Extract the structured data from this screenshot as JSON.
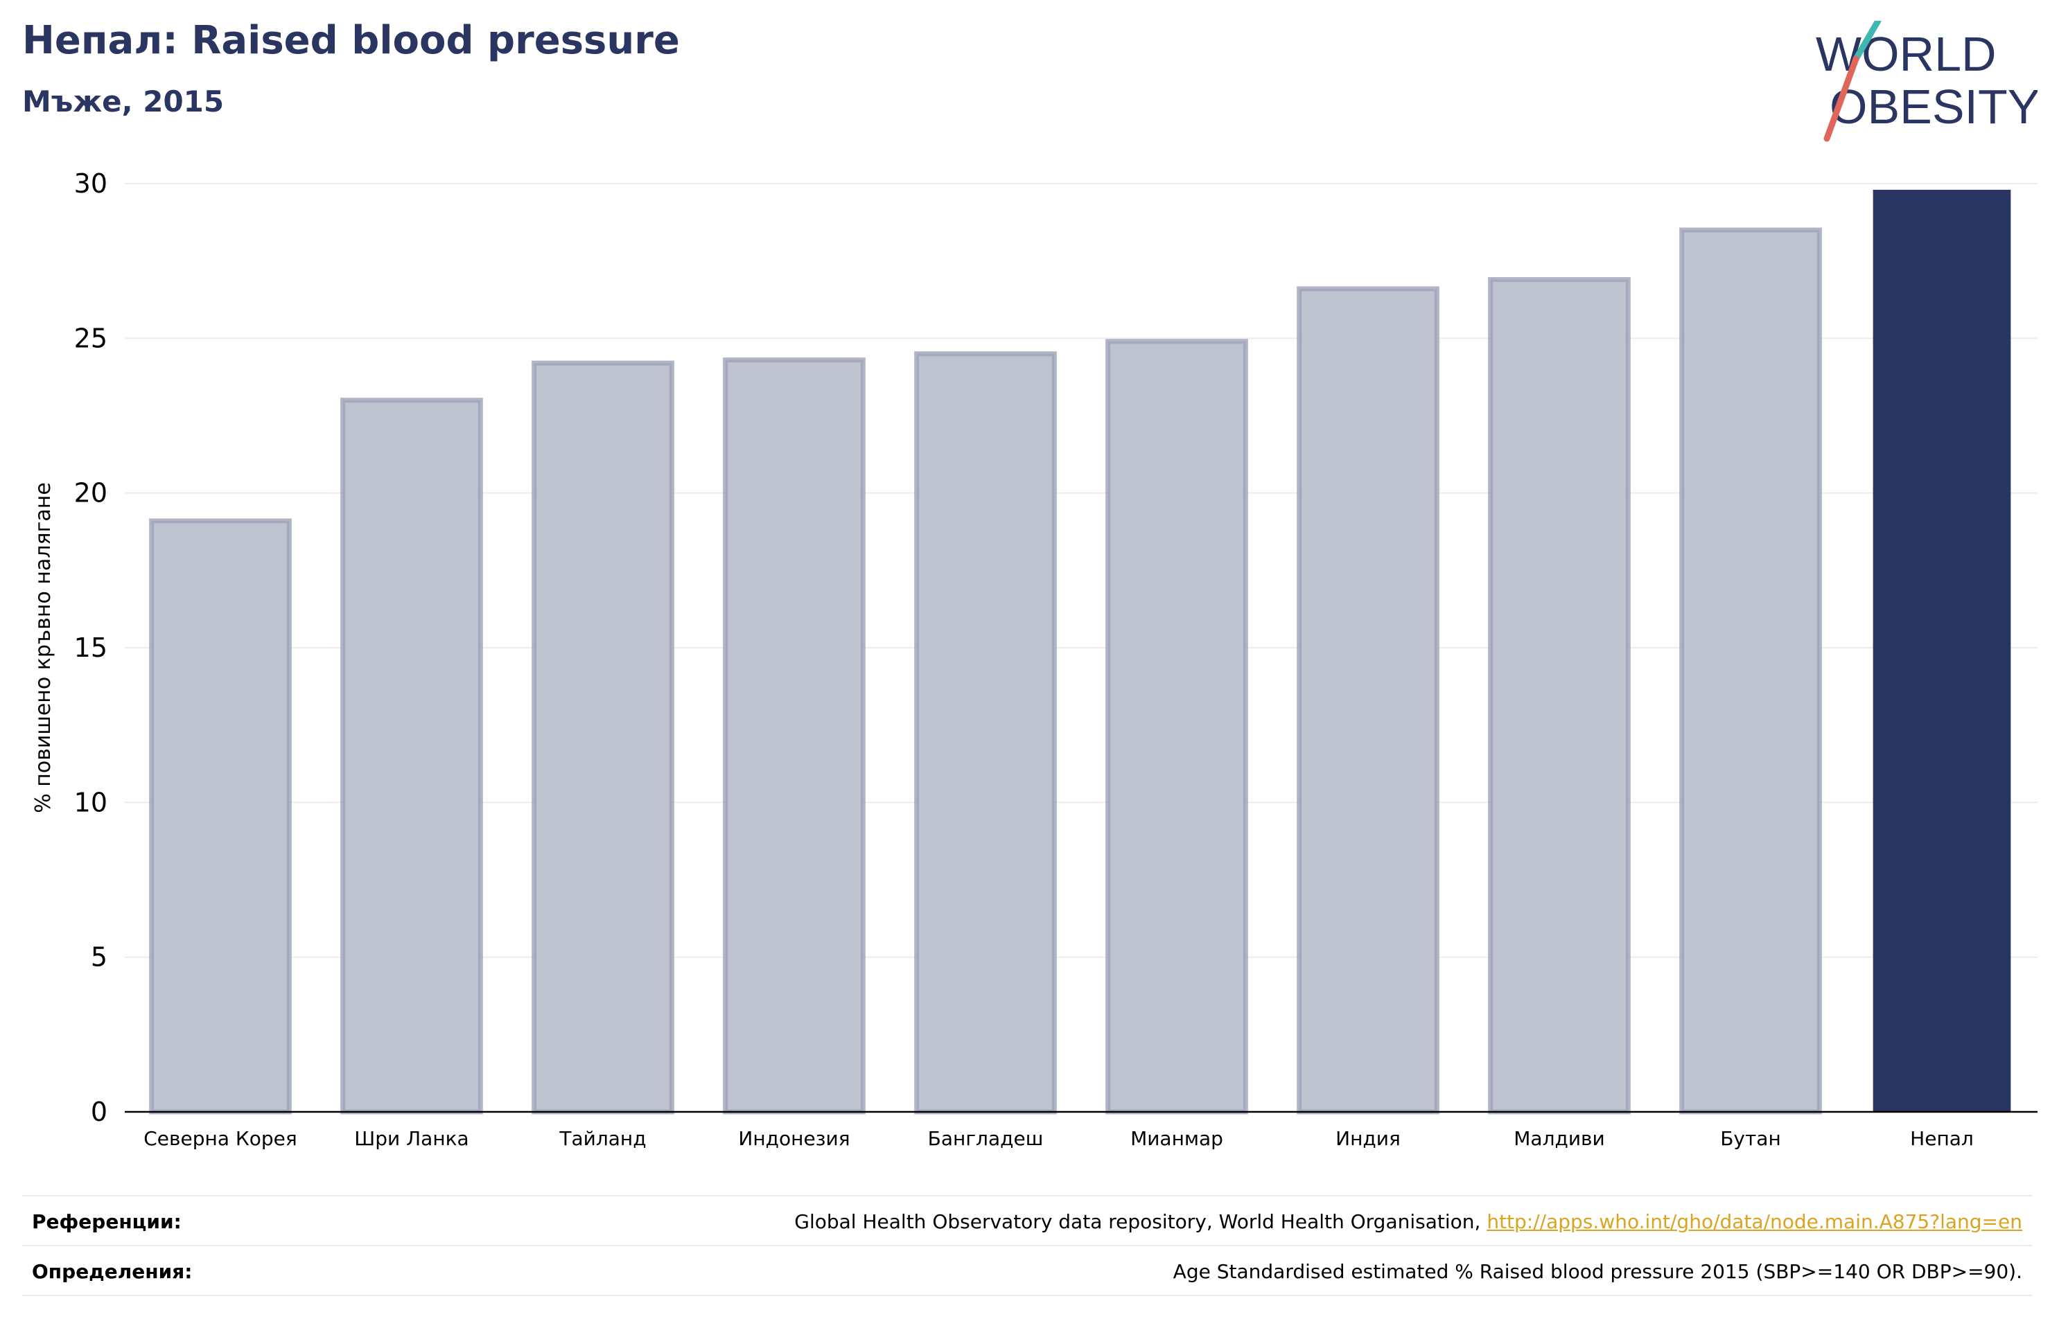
{
  "header": {
    "title": "Непал: Raised blood pressure",
    "subtitle": "Мъже, 2015"
  },
  "logo": {
    "line1": "WORLD",
    "line2": "OBESITY"
  },
  "colors": {
    "highlight": "#2a3561",
    "bar": "#bfc2cf",
    "bar_border": "#9ea3b8",
    "link": "#d9a41f"
  },
  "footer": {
    "references_label": "Референции:",
    "references_text": "Global Health Observatory data repository, World Health Organisation, ",
    "references_link": "http://apps.who.int/gho/data/node.main.A875?lang=en",
    "definitions_label": "Определения:",
    "definitions_text": "Age Standardised estimated % Raised blood pressure 2015 (SBP>=140 OR DBP>=90)."
  },
  "chart_data": {
    "type": "bar",
    "title": "Непал: Raised blood pressure",
    "subtitle": "Мъже, 2015",
    "xlabel": "",
    "ylabel": "% повишено кръвно налягане",
    "categories": [
      "Северна Корея",
      "Шри Ланка",
      "Тайланд",
      "Индонезия",
      "Бангладеш",
      "Мианмар",
      "Индия",
      "Малдиви",
      "Бутан",
      "Непал"
    ],
    "values": [
      19.1,
      23.0,
      24.2,
      24.3,
      24.5,
      24.9,
      26.6,
      26.9,
      28.5,
      29.8
    ],
    "highlight": "Непал",
    "ylim": [
      0,
      30
    ],
    "yticks": [
      0,
      5,
      10,
      15,
      20,
      25,
      30
    ],
    "grid": true,
    "legend": "none"
  }
}
